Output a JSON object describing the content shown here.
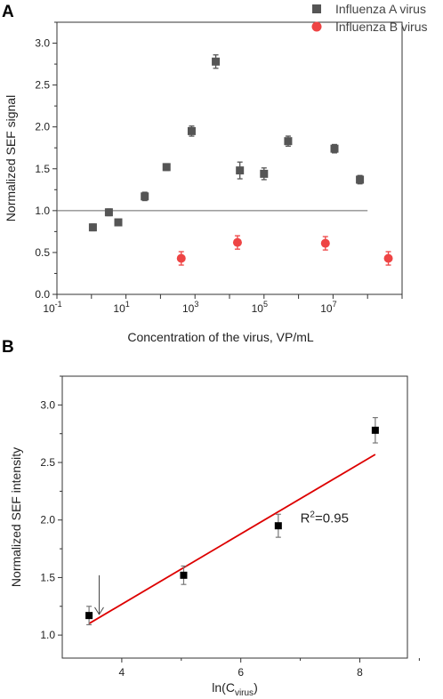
{
  "chart_data": [
    {
      "panel": "A",
      "type": "scatter",
      "xlabel": "Concentration of the virus, VP/mL",
      "ylabel": "Normalized SEF signal",
      "xscale": "log",
      "xlim": [
        0.1,
        1000000000
      ],
      "ylim": [
        0,
        3.25
      ],
      "x_ticks": [
        "10",
        "10",
        "10",
        "10",
        "10"
      ],
      "x_tick_exps": [
        "-1",
        "1",
        "3",
        "5",
        "7"
      ],
      "y_ticks": [
        "0.0",
        "0.5",
        "1.0",
        "1.5",
        "2.0",
        "2.5",
        "3.0"
      ],
      "reference_line_y": 1.0,
      "legend_position": "top-right",
      "grid": false,
      "series": [
        {
          "name": "Influenza A virus",
          "marker": "square",
          "color": "#555555",
          "x": [
            1.1,
            3.2,
            6.0,
            35,
            150,
            800,
            4000,
            20000,
            100000,
            500000,
            11000000,
            60000000
          ],
          "y": [
            0.8,
            0.98,
            0.86,
            1.17,
            1.52,
            1.95,
            2.78,
            1.48,
            1.44,
            1.83,
            1.74,
            1.37
          ],
          "err": [
            0.04,
            0.04,
            0.03,
            0.05,
            0.04,
            0.06,
            0.08,
            0.1,
            0.07,
            0.06,
            0.05,
            0.05
          ]
        },
        {
          "name": "Influenza B virus",
          "marker": "circle",
          "color": "#ee4444",
          "x": [
            400,
            17000,
            6000000,
            400000000
          ],
          "y": [
            0.43,
            0.62,
            0.61,
            0.43
          ],
          "err": [
            0.08,
            0.08,
            0.08,
            0.08
          ]
        }
      ]
    },
    {
      "panel": "B",
      "type": "scatter",
      "xlabel_main": "ln(C",
      "xlabel_sub": "virus",
      "xlabel_close": ")",
      "ylabel": "Normalized SEF intensity",
      "xlim": [
        3.0,
        8.8
      ],
      "ylim": [
        0.8,
        3.25
      ],
      "x_ticks": [
        "4",
        "6",
        "8"
      ],
      "y_ticks": [
        "1.0",
        "1.5",
        "2.0",
        "2.5",
        "3.0"
      ],
      "points": {
        "x": [
          3.45,
          5.04,
          6.63,
          8.26
        ],
        "y": [
          1.17,
          1.52,
          1.95,
          2.78
        ],
        "err": [
          0.08,
          0.08,
          0.1,
          0.11
        ]
      },
      "fit_line": {
        "x": [
          3.45,
          8.26
        ],
        "y": [
          1.1,
          2.57
        ],
        "color": "#dd0000"
      },
      "annotation": {
        "text_main": "R",
        "text_sup": "2",
        "text_rest": "=0.95",
        "x": 7.0,
        "y": 1.98
      },
      "arrow": {
        "x": 3.62,
        "y_from": 1.52,
        "y_to": 1.18
      }
    }
  ]
}
